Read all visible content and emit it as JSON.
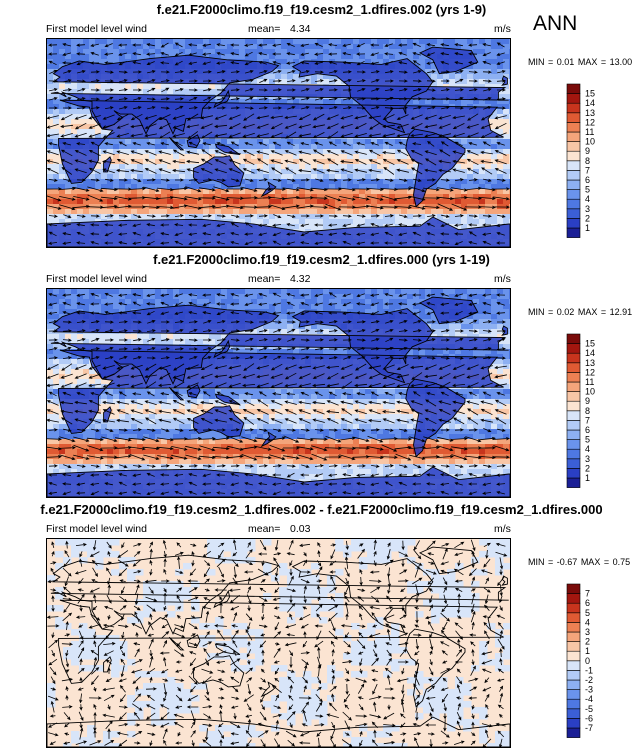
{
  "season_label": "ANN",
  "chart_data": [
    {
      "type": "map",
      "title": "f.e21.F2000climo.f19_f19.cesm2_1.dfires.002 (yrs 1-9)",
      "left_label": "First model level wind",
      "mean_label": "mean=",
      "mean_value": "4.34",
      "units": "m/s",
      "min_label": "MIN =",
      "min_value": "0.01",
      "max_label": "MAX =",
      "max_value": "13.00",
      "colorbar": {
        "levels": [
          1,
          2,
          3,
          4,
          5,
          6,
          7,
          8,
          9,
          10,
          11,
          12,
          13,
          14,
          15
        ],
        "colors": [
          "#1b1f96",
          "#2a3fc4",
          "#3b5fd6",
          "#4e78e2",
          "#6a93ec",
          "#8db0f2",
          "#b2cbf6",
          "#d8e5f9",
          "#fbe4d2",
          "#f8c6a6",
          "#f4a57b",
          "#ec8053",
          "#e05a33",
          "#c8341d",
          "#a3160f",
          "#7a0b0a"
        ]
      }
    },
    {
      "type": "map",
      "title": "f.e21.F2000climo.f19_f19.cesm2_1.dfires.000 (yrs 1-19)",
      "left_label": "First model level wind",
      "mean_label": "mean=",
      "mean_value": "4.32",
      "units": "m/s",
      "min_label": "MIN =",
      "min_value": "0.02",
      "max_label": "MAX =",
      "max_value": "12.91",
      "colorbar": {
        "levels": [
          1,
          2,
          3,
          4,
          5,
          6,
          7,
          8,
          9,
          10,
          11,
          12,
          13,
          14,
          15
        ],
        "colors": [
          "#1b1f96",
          "#2a3fc4",
          "#3b5fd6",
          "#4e78e2",
          "#6a93ec",
          "#8db0f2",
          "#b2cbf6",
          "#d8e5f9",
          "#fbe4d2",
          "#f8c6a6",
          "#f4a57b",
          "#ec8053",
          "#e05a33",
          "#c8341d",
          "#a3160f",
          "#7a0b0a"
        ]
      }
    },
    {
      "type": "map",
      "title": "f.e21.F2000climo.f19_f19.cesm2_1.dfires.002 - f.e21.F2000climo.f19_f19.cesm2_1.dfires.000",
      "left_label": "First model level wind",
      "mean_label": "mean=",
      "mean_value": "0.03",
      "units": "m/s",
      "min_label": "MIN =",
      "min_value": "-0.67",
      "max_label": "MAX =",
      "max_value": "0.75",
      "colorbar": {
        "levels": [
          -7,
          -6,
          -5,
          -4,
          -3,
          -2,
          -1,
          0,
          1,
          2,
          3,
          4,
          5,
          6,
          7
        ],
        "colors": [
          "#1b1f96",
          "#2a3fc4",
          "#3b5fd6",
          "#4e78e2",
          "#6a93ec",
          "#8db0f2",
          "#b2cbf6",
          "#d8e5f9",
          "#fbe4d2",
          "#f8c6a6",
          "#f4a57b",
          "#ec8053",
          "#e05a33",
          "#c8341d",
          "#a3160f",
          "#7a0b0a"
        ]
      }
    }
  ]
}
